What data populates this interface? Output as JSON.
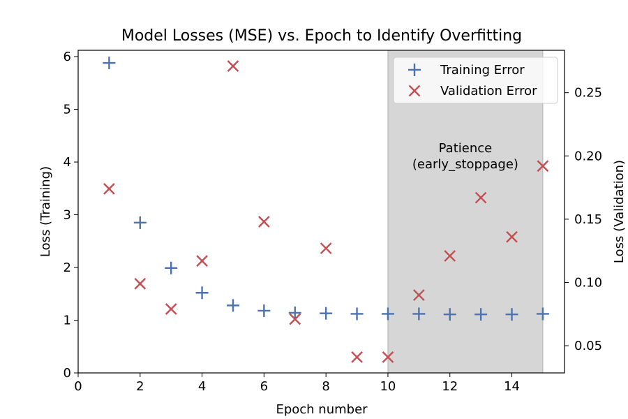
{
  "chart_data": {
    "type": "scatter",
    "title": "Model Losses (MSE) vs. Epoch to Identify Overfitting",
    "xlabel": "Epoch number",
    "ylabel_left": "Loss (Training)",
    "ylabel_right": "Loss (Validation)",
    "xlim": [
      0,
      15.7
    ],
    "ylim_left": [
      0,
      6.12
    ],
    "ylim_right": [
      0.0285,
      0.2835
    ],
    "x_ticks": [
      0,
      2,
      4,
      6,
      8,
      10,
      12,
      14
    ],
    "y_left_ticks": [
      0,
      1,
      2,
      3,
      4,
      5,
      6
    ],
    "y_right_ticks": [
      0.05,
      0.1,
      0.15,
      0.2,
      0.25
    ],
    "y_right_tick_labels": [
      "0.05",
      "0.10",
      "0.15",
      "0.20",
      "0.25"
    ],
    "grid": false,
    "legend_position": "top-right",
    "series": [
      {
        "name": "Training Error",
        "marker": "plus",
        "color": "#4c72b0",
        "axis": "left",
        "x": [
          1,
          2,
          3,
          4,
          5,
          6,
          7,
          8,
          9,
          10,
          11,
          12,
          13,
          14,
          15
        ],
        "y": [
          5.88,
          2.85,
          1.99,
          1.52,
          1.28,
          1.18,
          1.14,
          1.13,
          1.12,
          1.12,
          1.12,
          1.11,
          1.11,
          1.11,
          1.12
        ]
      },
      {
        "name": "Validation Error",
        "marker": "x",
        "color": "#c44e52",
        "axis": "right",
        "x": [
          1,
          2,
          3,
          4,
          5,
          6,
          7,
          8,
          9,
          10,
          11,
          12,
          13,
          14,
          15
        ],
        "y": [
          0.174,
          0.099,
          0.079,
          0.117,
          0.271,
          0.148,
          0.071,
          0.127,
          0.041,
          0.041,
          0.09,
          0.121,
          0.167,
          0.136,
          0.192
        ]
      }
    ],
    "shaded_region": {
      "x_start": 10,
      "x_end": 15,
      "color": "#d6d6d6"
    },
    "annotation": {
      "lines": [
        "Patience",
        "(early_stoppage)"
      ]
    }
  }
}
